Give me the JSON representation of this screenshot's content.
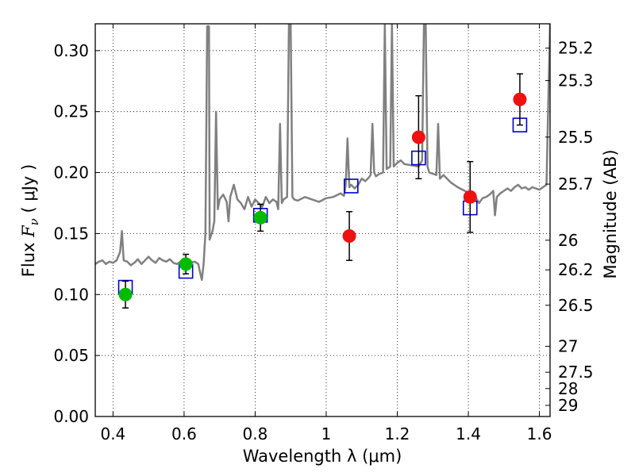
{
  "chart_data": {
    "type": "scatter",
    "xlabel": "Wavelength  λ (μm)",
    "ylabel_prefix": "Flux  ",
    "ylabel_symbol": "F",
    "ylabel_sub": "ν",
    "ylabel_units": "  ( μJy )",
    "y2label": "Magnitude (AB)",
    "xlim": [
      0.35,
      1.63
    ],
    "ylim": [
      0.0,
      0.322
    ],
    "grid": true,
    "grid_style": "dotted",
    "x_ticks": [
      {
        "value": 0.4,
        "label": "0.4"
      },
      {
        "value": 0.6,
        "label": "0.6"
      },
      {
        "value": 0.8,
        "label": "0.8"
      },
      {
        "value": 1.0,
        "label": "1"
      },
      {
        "value": 1.2,
        "label": "1.2"
      },
      {
        "value": 1.4,
        "label": "1.4"
      },
      {
        "value": 1.6,
        "label": "1.6"
      }
    ],
    "y_ticks": [
      {
        "value": 0.0,
        "label": "0.00"
      },
      {
        "value": 0.05,
        "label": "0.05"
      },
      {
        "value": 0.1,
        "label": "0.10"
      },
      {
        "value": 0.15,
        "label": "0.15"
      },
      {
        "value": 0.2,
        "label": "0.20"
      },
      {
        "value": 0.25,
        "label": "0.25"
      },
      {
        "value": 0.3,
        "label": "0.30"
      }
    ],
    "y2_ticks": [
      {
        "mag": 25.2,
        "label": "25.2"
      },
      {
        "mag": 25.3,
        "label": "25.3"
      },
      {
        "mag": 25.5,
        "label": "25.5"
      },
      {
        "mag": 25.7,
        "label": "25.7"
      },
      {
        "mag": 26.0,
        "label": "26"
      },
      {
        "mag": 26.2,
        "label": "26.2"
      },
      {
        "mag": 26.5,
        "label": "26.5"
      },
      {
        "mag": 27.0,
        "label": "27"
      },
      {
        "mag": 27.5,
        "label": "27.5"
      },
      {
        "mag": 28.0,
        "label": "28"
      },
      {
        "mag": 29.0,
        "label": "29"
      }
    ],
    "colors": {
      "spectrum": "#808080",
      "green_points": "#00bb00",
      "red_points": "#ee1111",
      "model_squares": "#0000cc",
      "errorbar": "#000000"
    },
    "series": [
      {
        "kind": "line",
        "points": [
          [
            0.35,
            0.125
          ],
          [
            0.36,
            0.127
          ],
          [
            0.37,
            0.128
          ],
          [
            0.38,
            0.125
          ],
          [
            0.39,
            0.127
          ],
          [
            0.4,
            0.126
          ],
          [
            0.41,
            0.128
          ],
          [
            0.42,
            0.135
          ],
          [
            0.425,
            0.152
          ],
          [
            0.43,
            0.128
          ],
          [
            0.44,
            0.127
          ],
          [
            0.45,
            0.124
          ],
          [
            0.46,
            0.126
          ],
          [
            0.47,
            0.129
          ],
          [
            0.48,
            0.125
          ],
          [
            0.49,
            0.128
          ],
          [
            0.5,
            0.131
          ],
          [
            0.51,
            0.128
          ],
          [
            0.52,
            0.126
          ],
          [
            0.53,
            0.13
          ],
          [
            0.54,
            0.128
          ],
          [
            0.55,
            0.127
          ],
          [
            0.56,
            0.129
          ],
          [
            0.57,
            0.126
          ],
          [
            0.58,
            0.125
          ],
          [
            0.59,
            0.127
          ],
          [
            0.6,
            0.126
          ],
          [
            0.61,
            0.128
          ],
          [
            0.62,
            0.126
          ],
          [
            0.63,
            0.127
          ],
          [
            0.64,
            0.125
          ],
          [
            0.645,
            0.118
          ],
          [
            0.65,
            0.112
          ],
          [
            0.655,
            0.125
          ],
          [
            0.66,
            0.15
          ],
          [
            0.665,
            0.32
          ],
          [
            0.67,
            0.32
          ],
          [
            0.672,
            0.145
          ],
          [
            0.68,
            0.152
          ],
          [
            0.685,
            0.16
          ],
          [
            0.69,
            0.25
          ],
          [
            0.695,
            0.17
          ],
          [
            0.7,
            0.178
          ],
          [
            0.71,
            0.182
          ],
          [
            0.72,
            0.176
          ],
          [
            0.725,
            0.16
          ],
          [
            0.73,
            0.18
          ],
          [
            0.74,
            0.19
          ],
          [
            0.75,
            0.178
          ],
          [
            0.76,
            0.175
          ],
          [
            0.77,
            0.17
          ],
          [
            0.78,
            0.18
          ],
          [
            0.79,
            0.172
          ],
          [
            0.8,
            0.178
          ],
          [
            0.81,
            0.175
          ],
          [
            0.82,
            0.172
          ],
          [
            0.83,
            0.18
          ],
          [
            0.84,
            0.175
          ],
          [
            0.85,
            0.178
          ],
          [
            0.86,
            0.176
          ],
          [
            0.865,
            0.17
          ],
          [
            0.87,
            0.24
          ],
          [
            0.875,
            0.175
          ],
          [
            0.88,
            0.178
          ],
          [
            0.89,
            0.18
          ],
          [
            0.895,
            0.322
          ],
          [
            0.9,
            0.322
          ],
          [
            0.905,
            0.18
          ],
          [
            0.91,
            0.178
          ],
          [
            0.92,
            0.177
          ],
          [
            0.94,
            0.18
          ],
          [
            0.96,
            0.178
          ],
          [
            0.98,
            0.176
          ],
          [
            1.0,
            0.179
          ],
          [
            1.02,
            0.18
          ],
          [
            1.04,
            0.183
          ],
          [
            1.05,
            0.181
          ],
          [
            1.055,
            0.19
          ],
          [
            1.06,
            0.228
          ],
          [
            1.065,
            0.188
          ],
          [
            1.07,
            0.19
          ],
          [
            1.08,
            0.187
          ],
          [
            1.09,
            0.19
          ],
          [
            1.1,
            0.195
          ],
          [
            1.11,
            0.193
          ],
          [
            1.12,
            0.196
          ],
          [
            1.125,
            0.198
          ],
          [
            1.13,
            0.24
          ],
          [
            1.135,
            0.2
          ],
          [
            1.14,
            0.197
          ],
          [
            1.15,
            0.199
          ],
          [
            1.16,
            0.2
          ],
          [
            1.165,
            0.322
          ],
          [
            1.17,
            0.203
          ],
          [
            1.18,
            0.205
          ],
          [
            1.185,
            0.322
          ],
          [
            1.19,
            0.205
          ],
          [
            1.2,
            0.208
          ],
          [
            1.21,
            0.21
          ],
          [
            1.22,
            0.207
          ],
          [
            1.24,
            0.206
          ],
          [
            1.26,
            0.205
          ],
          [
            1.27,
            0.21
          ],
          [
            1.275,
            0.322
          ],
          [
            1.28,
            0.322
          ],
          [
            1.285,
            0.205
          ],
          [
            1.29,
            0.2
          ],
          [
            1.31,
            0.198
          ],
          [
            1.315,
            0.24
          ],
          [
            1.32,
            0.195
          ],
          [
            1.33,
            0.198
          ],
          [
            1.35,
            0.192
          ],
          [
            1.37,
            0.188
          ],
          [
            1.39,
            0.185
          ],
          [
            1.41,
            0.182
          ],
          [
            1.42,
            0.18
          ],
          [
            1.43,
            0.175
          ],
          [
            1.44,
            0.179
          ],
          [
            1.45,
            0.18
          ],
          [
            1.46,
            0.182
          ],
          [
            1.47,
            0.185
          ],
          [
            1.475,
            0.165
          ],
          [
            1.48,
            0.18
          ],
          [
            1.49,
            0.183
          ],
          [
            1.5,
            0.185
          ],
          [
            1.51,
            0.187
          ],
          [
            1.52,
            0.185
          ],
          [
            1.53,
            0.188
          ],
          [
            1.54,
            0.19
          ],
          [
            1.55,
            0.187
          ],
          [
            1.56,
            0.188
          ],
          [
            1.57,
            0.186
          ],
          [
            1.58,
            0.188
          ],
          [
            1.59,
            0.187
          ],
          [
            1.6,
            0.186
          ],
          [
            1.61,
            0.188
          ],
          [
            1.62,
            0.19
          ],
          [
            1.625,
            0.26
          ],
          [
            1.63,
            0.322
          ]
        ]
      },
      {
        "kind": "markers-circle",
        "color_key": "green_points",
        "points": [
          {
            "x": 0.435,
            "y": 0.1,
            "err": 0.011
          },
          {
            "x": 0.605,
            "y": 0.125,
            "err": 0.008
          },
          {
            "x": 0.815,
            "y": 0.163,
            "err": 0.011
          }
        ]
      },
      {
        "kind": "markers-circle",
        "color_key": "red_points",
        "points": [
          {
            "x": 1.065,
            "y": 0.148,
            "err": 0.02
          },
          {
            "x": 1.26,
            "y": 0.229,
            "err": 0.034
          },
          {
            "x": 1.405,
            "y": 0.18,
            "err": 0.029
          },
          {
            "x": 1.545,
            "y": 0.26,
            "err": 0.021
          }
        ]
      },
      {
        "kind": "markers-square",
        "color_key": "model_squares",
        "points": [
          {
            "x": 0.435,
            "y": 0.106
          },
          {
            "x": 0.605,
            "y": 0.119
          },
          {
            "x": 0.815,
            "y": 0.165
          },
          {
            "x": 1.07,
            "y": 0.189
          },
          {
            "x": 1.26,
            "y": 0.212
          },
          {
            "x": 1.405,
            "y": 0.171
          },
          {
            "x": 1.545,
            "y": 0.239
          }
        ]
      }
    ]
  }
}
